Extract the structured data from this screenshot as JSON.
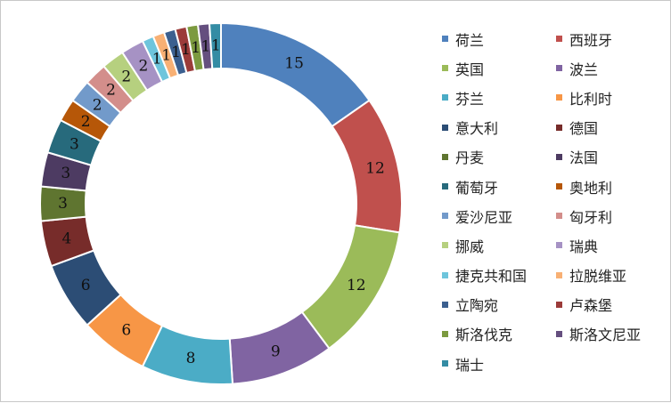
{
  "chart_data": {
    "type": "pie",
    "title": "",
    "categories": [
      "荷兰",
      "西班牙",
      "英国",
      "波兰",
      "芬兰",
      "比利时",
      "意大利",
      "德国",
      "丹麦",
      "法国",
      "葡萄牙",
      "奥地利",
      "爱沙尼亚",
      "匈牙利",
      "挪威",
      "瑞典",
      "捷克共和国",
      "拉脱维亚",
      "立陶宛",
      "卢森堡",
      "斯洛伐克",
      "斯洛文尼亚",
      "瑞士"
    ],
    "values": [
      15,
      12,
      12,
      9,
      8,
      6,
      6,
      4,
      3,
      3,
      3,
      2,
      2,
      2,
      2,
      2,
      1,
      1,
      1,
      1,
      1,
      1,
      1
    ],
    "colors": [
      "#4f81bd",
      "#c0504d",
      "#9bbb59",
      "#8064a2",
      "#4bacc6",
      "#f79646",
      "#2c4d75",
      "#772c2a",
      "#5f7530",
      "#4d3b62",
      "#276a7c",
      "#b65708",
      "#729aca",
      "#d38e8b",
      "#b6d07f",
      "#a692c4",
      "#6ec5dc",
      "#f8b074",
      "#3b5f8f",
      "#9b3b39",
      "#7c9a3f",
      "#654f7f",
      "#348ca4"
    ],
    "legend_position": "right",
    "hole": "donut"
  }
}
